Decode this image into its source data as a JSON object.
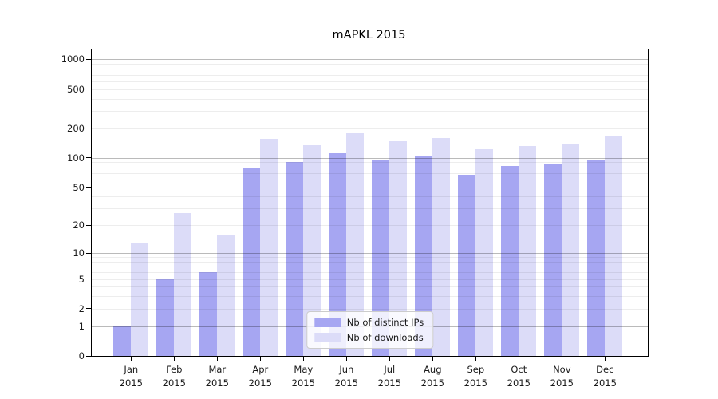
{
  "title": "mAPKL 2015",
  "chart_data": {
    "type": "bar",
    "title": "mAPKL 2015",
    "categories": [
      "Jan 2015",
      "Feb 2015",
      "Mar 2015",
      "Apr 2015",
      "May 2015",
      "Jun 2015",
      "Jul 2015",
      "Aug 2015",
      "Sep 2015",
      "Oct 2015",
      "Nov 2015",
      "Dec 2015"
    ],
    "series": [
      {
        "name": "Nb of distinct IPs",
        "color": "#a6a6f2",
        "values": [
          1,
          5,
          6,
          80,
          90,
          111,
          94,
          105,
          67,
          83,
          88,
          95
        ]
      },
      {
        "name": "Nb of downloads",
        "color": "#dcdcf8",
        "values": [
          13,
          27,
          16,
          155,
          134,
          179,
          148,
          160,
          122,
          133,
          140,
          165
        ]
      }
    ],
    "yticks": [
      0,
      1,
      2,
      5,
      10,
      20,
      50,
      100,
      200,
      500,
      1000
    ],
    "scale": "log1p",
    "ylim": [
      0,
      1260
    ],
    "xlabel": "",
    "ylabel": "",
    "grid": true,
    "grid_major_values": [
      1,
      10,
      100,
      1000
    ],
    "legend_position": "lower center",
    "colors": {
      "spine": "#000000",
      "grid_major": "#b9b9b9",
      "grid_minor": "#ececec",
      "background": "#ffffff"
    }
  }
}
